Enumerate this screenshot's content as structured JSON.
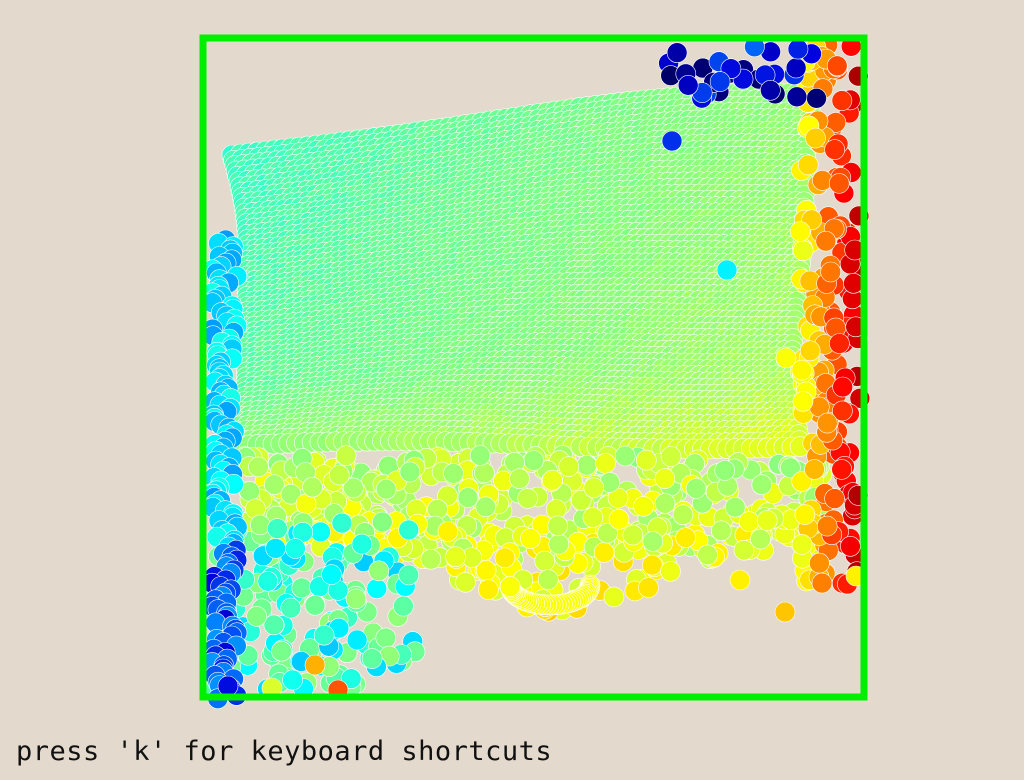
{
  "app": {
    "hint_text": "press 'k' for keyboard shortcuts"
  },
  "theme": {
    "background": "#e3d9cd",
    "container_border_color": "#00ee00",
    "particle_outline": "#ffffff"
  },
  "simulation": {
    "colormap": "jet",
    "colormap_stops": [
      "#000066",
      "#0000dd",
      "#0088ff",
      "#00ffff",
      "#66ff99",
      "#aaff66",
      "#ffff00",
      "#ff8800",
      "#ff0000",
      "#880000"
    ]
  }
}
